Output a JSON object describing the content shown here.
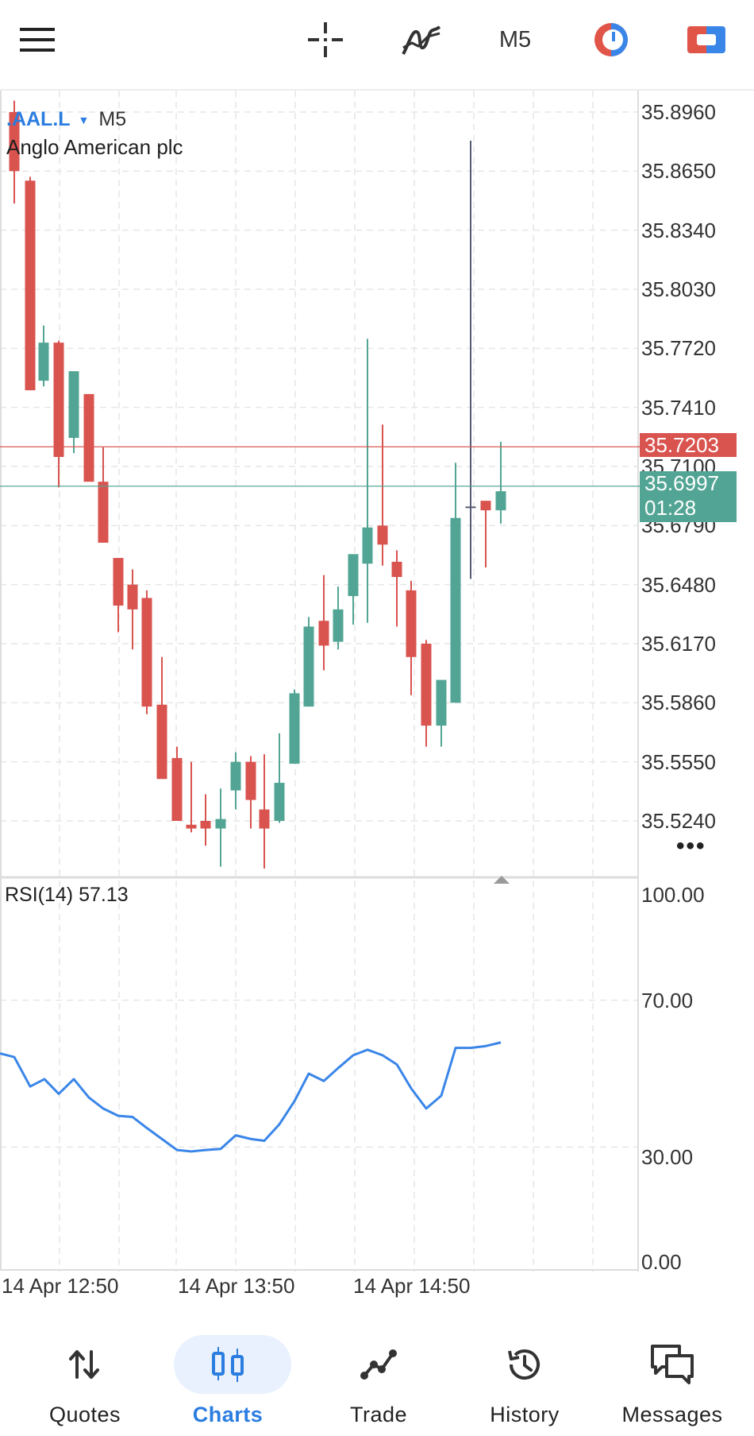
{
  "toolbar": {
    "timeframe": "M5"
  },
  "chart": {
    "symbol": ".AAL.L",
    "timeframe": "M5",
    "company": "Anglo American plc",
    "price_axis": [
      "35.8960",
      "35.8650",
      "35.8340",
      "35.8030",
      "35.7720",
      "35.7410",
      "35.7100",
      "35.6790",
      "35.6480",
      "35.6170",
      "35.5860",
      "35.5550",
      "35.5240"
    ],
    "ask_price": "35.7203",
    "bid_price": "35.6997",
    "countdown": "01:28",
    "up_color": "#52a594",
    "down_color": "#d9534f"
  },
  "rsi": {
    "label": "RSI(14) 57.13",
    "axis": [
      "100.00",
      "70.00",
      "30.00",
      "0.00"
    ],
    "line_color": "#3a86e8"
  },
  "time_axis": [
    "14 Apr 12:50",
    "14 Apr 13:50",
    "14 Apr 14:50"
  ],
  "nav": {
    "quotes": "Quotes",
    "charts": "Charts",
    "trade": "Trade",
    "history": "History",
    "messages": "Messages"
  }
}
